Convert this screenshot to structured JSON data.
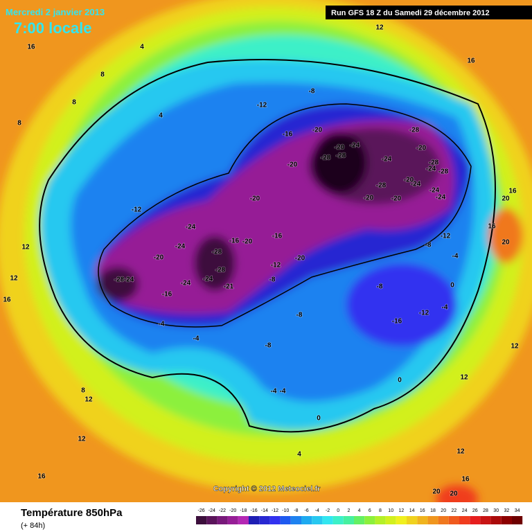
{
  "header": {
    "date": "Mercredi 2 janvier 2013",
    "time": "7:00 locale",
    "run": "Run GFS 18 Z du Samedi 29 décembre 2012"
  },
  "copyright": "Copyright © 2012 Meteociel.fr",
  "footer": {
    "title": "Température 850hPa",
    "lead": "(+ 84h)"
  },
  "scale": {
    "labels": [
      "-26",
      "-24",
      "-22",
      "-20",
      "-18",
      "-16",
      "-14",
      "-12",
      "-10",
      "-8",
      "-6",
      "-4",
      "-2",
      "0",
      "2",
      "4",
      "6",
      "8",
      "10",
      "12",
      "14",
      "16",
      "18",
      "20",
      "22",
      "24",
      "26",
      "28",
      "30",
      "32",
      "34"
    ],
    "colors": [
      "#3c0f3c",
      "#5a145a",
      "#78197a",
      "#961e96",
      "#b428b4",
      "#1e1eb4",
      "#2828d2",
      "#3232f0",
      "#1e5af0",
      "#1e82f0",
      "#1eaaf0",
      "#28c8f0",
      "#32e6f0",
      "#3cf0c8",
      "#46f0a0",
      "#64f064",
      "#8cf03c",
      "#b4f028",
      "#d2f01e",
      "#f0f01e",
      "#f0d21e",
      "#f0b41e",
      "#f0961e",
      "#f0781e",
      "#f05a1e",
      "#f03c1e",
      "#e61e1e",
      "#c81414",
      "#aa0a0a",
      "#8c0000",
      "#6e0000"
    ]
  },
  "contour_labels": [
    "12",
    "16",
    "16",
    "4",
    "8",
    "4",
    "8",
    "8",
    "-8",
    "-12",
    "-16",
    "-20",
    "-28",
    "-20",
    "-24",
    "-28",
    "-28",
    "-24",
    "-20",
    "-20",
    "-28",
    "-24",
    "-28",
    "-28",
    "-20",
    "-24",
    "-24",
    "-24",
    "-20",
    "-20",
    "-20",
    "-12",
    "-24",
    "-16",
    "-20",
    "-16",
    "-24",
    "-28",
    "-20",
    "-12",
    "-20",
    "-28",
    "-28",
    "-24",
    "-24",
    "-24",
    "-21",
    "-16",
    "-8",
    "-8",
    "-16",
    "-12",
    "-8",
    "-4",
    "-4",
    "-8",
    "0",
    "0",
    "-4",
    "-8",
    "-12",
    "-4",
    "12",
    "16",
    "12",
    "8",
    "12",
    "12",
    "16",
    "20",
    "20",
    "16",
    "12",
    "4",
    "0",
    "-4",
    "-4",
    "20",
    "16",
    "20",
    "16",
    "12",
    "12"
  ]
}
